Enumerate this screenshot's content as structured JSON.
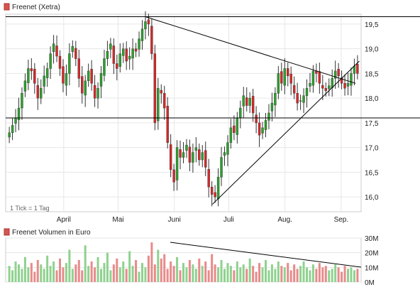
{
  "price_panel": {
    "legend_label": "Freenet (Xetra)",
    "legend_color": "#d9534f",
    "note": "1 Tick = 1 Tag"
  },
  "volume_panel": {
    "legend_label": "Freenet Volumen in Euro",
    "legend_color": "#d9534f"
  },
  "colors": {
    "up": "#2ca02c",
    "down": "#d62728",
    "volume_up": "#8fd18f",
    "volume_down": "#e88a8a",
    "grid": "#e6e6e6",
    "line": "#000000"
  },
  "chart_data": [
    {
      "type": "candlestick",
      "title": "Freenet (Xetra)",
      "x_ticks": [
        {
          "label": "April",
          "day": 0
        },
        {
          "label": "Mai",
          "day": 30
        },
        {
          "label": "Juni",
          "day": 61
        },
        {
          "label": "Juli",
          "day": 91
        },
        {
          "label": "Aug.",
          "day": 122
        },
        {
          "label": "Sep.",
          "day": 153
        }
      ],
      "xlim": [
        -32,
        164
      ],
      "y_ticks": [
        16.0,
        16.5,
        17.0,
        17.5,
        18.0,
        18.5,
        19.0,
        19.5
      ],
      "ylim": [
        15.7,
        19.7
      ],
      "horizontal_levels": [
        19.65,
        17.6
      ],
      "trendlines": [
        {
          "from": [
            45,
            19.65
          ],
          "to": [
            161,
            18.3
          ]
        },
        {
          "from": [
            82,
            15.85
          ],
          "to": [
            163,
            18.75
          ]
        }
      ],
      "close": [
        17.3,
        17.45,
        17.6,
        17.8,
        18.1,
        18.35,
        18.6,
        18.55,
        18.3,
        18.0,
        18.2,
        18.45,
        18.6,
        18.9,
        19.1,
        18.85,
        18.6,
        18.3,
        18.5,
        18.9,
        19.05,
        18.8,
        18.4,
        18.1,
        18.35,
        18.55,
        18.3,
        18.0,
        18.2,
        18.5,
        18.8,
        18.95,
        19.1,
        18.7,
        18.6,
        18.9,
        19.0,
        18.75,
        18.85,
        19.0,
        18.95,
        19.2,
        19.4,
        19.55,
        19.5,
        18.9,
        17.5,
        18.2,
        18.1,
        17.8,
        17.1,
        16.55,
        16.3,
        17.0,
        16.8,
        16.9,
        17.05,
        16.7,
        16.9,
        17.0,
        16.75,
        16.9,
        16.6,
        16.2,
        16.05,
        16.0,
        16.4,
        16.8,
        16.9,
        17.1,
        17.4,
        17.3,
        17.6,
        17.8,
        18.05,
        17.85,
        18.0,
        17.7,
        17.5,
        17.25,
        17.4,
        17.55,
        17.7,
        17.9,
        18.1,
        18.5,
        18.3,
        18.6,
        18.45,
        18.3,
        18.1,
        17.9,
        17.95,
        18.05,
        18.2,
        18.3,
        18.55,
        18.5,
        18.3,
        18.2,
        18.15,
        18.25,
        18.4,
        18.55,
        18.45,
        18.3,
        18.2,
        18.3,
        18.5,
        18.65,
        18.5
      ],
      "open_offsets_note": ""
    },
    {
      "type": "bar",
      "title": "Freenet Volumen in Euro",
      "y_ticks": [
        "0M",
        "10M",
        "20M",
        "30M"
      ],
      "ylim": [
        0,
        30
      ],
      "values": [
        11,
        8,
        14,
        12,
        9,
        17,
        10,
        13,
        7,
        15,
        12,
        9,
        18,
        11,
        14,
        8,
        16,
        10,
        13,
        22,
        9,
        12,
        15,
        8,
        25,
        11,
        14,
        10,
        17,
        9,
        13,
        20,
        8,
        12,
        16,
        10,
        14,
        9,
        21,
        11,
        15,
        7,
        13,
        10,
        18,
        27,
        12,
        22,
        16,
        19,
        9,
        14,
        11,
        17,
        8,
        13,
        10,
        15,
        12,
        9,
        16,
        11,
        14,
        8,
        19,
        12,
        10,
        15,
        9,
        13,
        11,
        8,
        14,
        10,
        12,
        9,
        16,
        11,
        7,
        13,
        10,
        15,
        8,
        12,
        9,
        14,
        11,
        10,
        13,
        8,
        12,
        9,
        11,
        14,
        10,
        8,
        12,
        9,
        13,
        10,
        11,
        8,
        9,
        12,
        10,
        7,
        11,
        9,
        10,
        8,
        9
      ]
    }
  ]
}
